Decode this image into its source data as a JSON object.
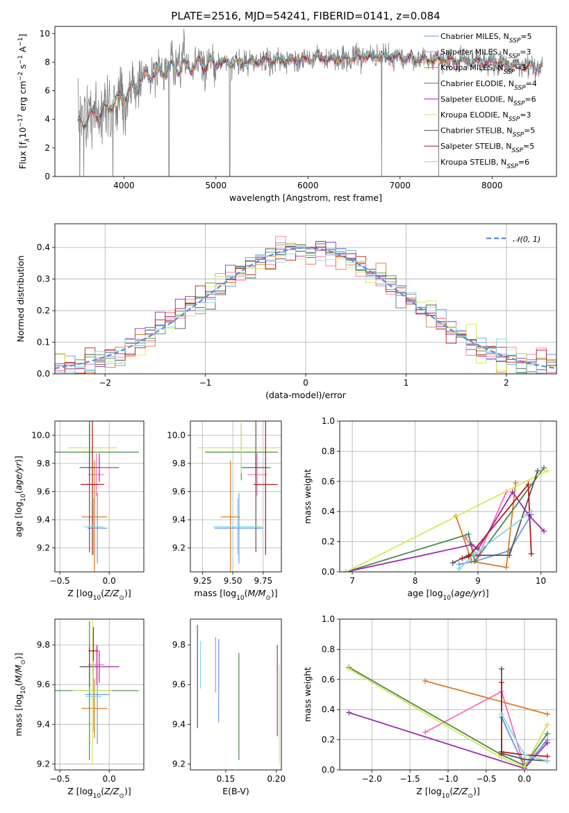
{
  "title": "PLATE=2516, MJD=54241, FIBERID=0141, z=0.084",
  "colors": {
    "Chabrier MILES": "#6495ed",
    "Salpeter MILES": "#ff69b4",
    "Kroupa MILES": "#e07a20",
    "Chabrier ELODIE": "#4a8a4a",
    "Salpeter ELODIE": "#9a2ab0",
    "Kroupa ELODIE": "#d4e85a",
    "Chabrier STELIB": "#555555",
    "Salpeter STELIB": "#b01818",
    "Kroupa STELIB": "#80d8e0",
    "data": "#7f7f7f",
    "normal": "#5b8bd6"
  },
  "chart_data": [
    {
      "id": "spectrum",
      "type": "line",
      "title": "PLATE=2516, MJD=54241, FIBERID=0141, z=0.084",
      "xlabel": "wavelength [Angstrom, rest frame]",
      "ylabel_parts": [
        "Flux [f",
        "λ",
        "10",
        "−17",
        " erg cm",
        "−2",
        " s",
        "−1",
        " A",
        "−1",
        "]"
      ],
      "xlim": [
        3250,
        8700
      ],
      "ylim": [
        0,
        10.5
      ],
      "xticks": [
        4000,
        5000,
        6000,
        7000,
        8000
      ],
      "yticks": [
        0,
        2,
        4,
        6,
        8,
        10
      ],
      "grid": false,
      "legend": "right",
      "legend_entries": [
        {
          "model": "Chabrier MILES",
          "label": "Chabrier MILES, N",
          "n": "=5"
        },
        {
          "model": "Salpeter MILES",
          "label": "Salpeter MILES, N",
          "n": "=3"
        },
        {
          "model": "Kroupa MILES",
          "label": "Kroupa MILES, N",
          "n": "=3"
        },
        {
          "model": "Chabrier ELODIE",
          "label": "Chabrier ELODIE, N",
          "n": "=4"
        },
        {
          "model": "Salpeter ELODIE",
          "label": "Salpeter ELODIE, N",
          "n": "=6"
        },
        {
          "model": "Kroupa ELODIE",
          "label": "Kroupa ELODIE, N",
          "n": "=3"
        },
        {
          "model": "Chabrier STELIB",
          "label": "Chabrier STELIB, N",
          "n": "=5"
        },
        {
          "model": "Salpeter STELIB",
          "label": "Salpeter STELIB, N",
          "n": "=5"
        },
        {
          "model": "Kroupa STELIB",
          "label": "Kroupa STELIB, N",
          "n": "=6"
        }
      ],
      "legend_sub": "SSP",
      "continuum": {
        "x": [
          3500,
          3700,
          3900,
          4100,
          4300,
          4500,
          4700,
          4900,
          5100,
          5300,
          5500,
          5700,
          5900,
          6100,
          6300,
          6500,
          6700,
          6900,
          7100,
          7300,
          7500,
          7700,
          7900,
          8100,
          8300,
          8500
        ],
        "y": [
          3.7,
          4.4,
          5.1,
          6.2,
          7.2,
          7.6,
          7.8,
          7.9,
          7.9,
          8.0,
          8.1,
          8.1,
          8.2,
          8.3,
          8.2,
          8.3,
          8.4,
          8.4,
          8.3,
          8.2,
          8.2,
          8.1,
          8.0,
          7.9,
          7.8,
          7.7
        ]
      },
      "drops": [
        3520,
        3880,
        4490,
        5150,
        6800,
        7420
      ]
    },
    {
      "id": "residuals",
      "type": "histogram",
      "xlabel": "(data-model)/error",
      "ylabel": "Normed distribution",
      "xlim": [
        -2.5,
        2.5
      ],
      "ylim": [
        0,
        0.475
      ],
      "xticks": [
        -2,
        -1,
        0,
        1,
        2
      ],
      "yticks": [
        0.0,
        0.1,
        0.2,
        0.3,
        0.4
      ],
      "grid": true,
      "legend": "top-right",
      "reference_label": "𝒩(0, 1)",
      "bin_width": 0.1
    },
    {
      "id": "age-vs-Z",
      "type": "errorbar",
      "xlabel": "Z [log10(Z/Z⊙)]",
      "ylabel": "age  [log10(age/yr)]",
      "xlim": [
        -0.55,
        0.35
      ],
      "ylim": [
        9.03,
        10.1
      ],
      "xticks": [
        -0.5,
        0.0
      ],
      "yticks": [
        9.2,
        9.4,
        9.6,
        9.8,
        10.0
      ],
      "grid": true,
      "points": [
        {
          "model": "Chabrier MILES",
          "x": -0.12,
          "y": 9.34,
          "xerr": 0.1,
          "yerr": 0.25
        },
        {
          "model": "Salpeter MILES",
          "x": -0.13,
          "y": 9.72,
          "xerr": 0.08,
          "yerr": 0.15
        },
        {
          "model": "Kroupa MILES",
          "x": -0.15,
          "y": 9.42,
          "xerr": 0.13,
          "yerr": 0.4
        },
        {
          "model": "Chabrier ELODIE",
          "x": -0.2,
          "y": 9.88,
          "xerr": 0.5,
          "yerr": 0.2
        },
        {
          "model": "Salpeter ELODIE",
          "x": -0.1,
          "y": 9.77,
          "xerr": 0.2,
          "yerr": 0.1
        },
        {
          "model": "Kroupa ELODIE",
          "x": -0.17,
          "y": 9.91,
          "xerr": 0.25,
          "yerr": 0.18
        },
        {
          "model": "Chabrier STELIB",
          "x": -0.2,
          "y": 9.77,
          "xerr": 0.1,
          "yerr": 0.6
        },
        {
          "model": "Salpeter STELIB",
          "x": -0.17,
          "y": 9.65,
          "xerr": 0.12,
          "yerr": 0.5
        },
        {
          "model": "Kroupa STELIB",
          "x": -0.16,
          "y": 9.35,
          "xerr": 0.1,
          "yerr": 0.2
        }
      ]
    },
    {
      "id": "age-vs-mass",
      "type": "errorbar",
      "xlabel": "mass [log10(M/M⊙)]",
      "ylabel": "",
      "xlim": [
        9.15,
        9.9
      ],
      "ylim": [
        9.03,
        10.1
      ],
      "xticks": [
        9.25,
        9.5,
        9.75
      ],
      "yticks": [
        9.2,
        9.4,
        9.6,
        9.8,
        10.0
      ],
      "grid": true,
      "points": [
        {
          "model": "Chabrier MILES",
          "x": 9.55,
          "y": 9.34,
          "xerr": 0.2,
          "yerr": 0.25
        },
        {
          "model": "Salpeter MILES",
          "x": 9.7,
          "y": 9.72,
          "xerr": 0.08,
          "yerr": 0.15
        },
        {
          "model": "Kroupa MILES",
          "x": 9.48,
          "y": 9.42,
          "xerr": 0.08,
          "yerr": 0.4
        },
        {
          "model": "Chabrier ELODIE",
          "x": 9.57,
          "y": 9.88,
          "xerr": 0.3,
          "yerr": 0.2
        },
        {
          "model": "Salpeter ELODIE",
          "x": 9.69,
          "y": 9.77,
          "xerr": 0.1,
          "yerr": 0.1
        },
        {
          "model": "Kroupa ELODIE",
          "x": 9.57,
          "y": 9.91,
          "xerr": 0.36,
          "yerr": 0.18
        },
        {
          "model": "Chabrier STELIB",
          "x": 9.69,
          "y": 9.77,
          "xerr": 0.12,
          "yerr": 0.6
        },
        {
          "model": "Salpeter STELIB",
          "x": 9.77,
          "y": 9.65,
          "xerr": 0.1,
          "yerr": 0.5
        },
        {
          "model": "Kroupa STELIB",
          "x": 9.54,
          "y": 9.35,
          "xerr": 0.2,
          "yerr": 0.2
        }
      ]
    },
    {
      "id": "weight-vs-age",
      "type": "line",
      "xlabel": "age  [log10(age/yr)]",
      "ylabel": "mass weight",
      "xlim": [
        6.8,
        10.25
      ],
      "ylim": [
        0,
        1.0
      ],
      "xticks": [
        7,
        8,
        9,
        10
      ],
      "yticks": [
        0.0,
        0.2,
        0.4,
        0.6,
        0.8,
        1.0
      ],
      "grid": true,
      "series": [
        {
          "model": "Chabrier MILES",
          "x": [
            8.7,
            8.95,
            9.5,
            9.85
          ],
          "y": [
            0.05,
            0.07,
            0.14,
            0.38
          ]
        },
        {
          "model": "Salpeter MILES",
          "x": [
            8.8,
            9.0,
            9.45
          ],
          "y": [
            0.23,
            0.1,
            0.53
          ]
        },
        {
          "model": "Kroupa MILES",
          "x": [
            8.65,
            8.9,
            9.45,
            9.6
          ],
          "y": [
            0.37,
            0.07,
            0.03,
            0.59
          ]
        },
        {
          "model": "Chabrier ELODIE",
          "x": [
            6.9,
            8.85,
            8.95,
            10.05
          ],
          "y": [
            0.0,
            0.25,
            0.07,
            0.69
          ]
        },
        {
          "model": "Salpeter ELODIE",
          "x": [
            6.9,
            8.9,
            9.0,
            9.55,
            9.8,
            10.05
          ],
          "y": [
            0.0,
            0.18,
            0.15,
            0.53,
            0.38,
            0.27
          ]
        },
        {
          "model": "Kroupa ELODIE",
          "x": [
            6.9,
            10.1
          ],
          "y": [
            0.0,
            0.67
          ]
        },
        {
          "model": "Chabrier STELIB",
          "x": [
            8.6,
            8.85,
            9.5,
            9.95
          ],
          "y": [
            0.06,
            0.11,
            0.11,
            0.67
          ]
        },
        {
          "model": "Salpeter STELIB",
          "x": [
            8.75,
            8.85,
            9.8,
            9.85
          ],
          "y": [
            0.09,
            0.1,
            0.58,
            0.12
          ]
        },
        {
          "model": "Kroupa STELIB",
          "x": [
            8.7,
            8.95,
            9.85
          ],
          "y": [
            0.02,
            0.12,
            0.4
          ]
        }
      ]
    },
    {
      "id": "mass-vs-Z",
      "type": "errorbar",
      "xlabel": "Z [log10(Z/Z⊙)]",
      "ylabel": "mass [log10(M/M⊙)]",
      "xlim": [
        -0.55,
        0.35
      ],
      "ylim": [
        9.17,
        9.93
      ],
      "xticks": [
        -0.5,
        0.0
      ],
      "yticks": [
        9.2,
        9.4,
        9.6,
        9.8
      ],
      "grid": true,
      "points": [
        {
          "model": "Chabrier MILES",
          "x": -0.12,
          "y": 9.55,
          "xerr": 0.12,
          "yerr": 0.25
        },
        {
          "model": "Salpeter MILES",
          "x": -0.13,
          "y": 9.7,
          "xerr": 0.08,
          "yerr": 0.1
        },
        {
          "model": "Kroupa MILES",
          "x": -0.15,
          "y": 9.48,
          "xerr": 0.13,
          "yerr": 0.15
        },
        {
          "model": "Chabrier ELODIE",
          "x": -0.2,
          "y": 9.57,
          "xerr": 0.5,
          "yerr": 0.35
        },
        {
          "model": "Salpeter ELODIE",
          "x": -0.1,
          "y": 9.69,
          "xerr": 0.2,
          "yerr": 0.08
        },
        {
          "model": "Kroupa ELODIE",
          "x": -0.17,
          "y": 9.57,
          "xerr": 0.2,
          "yerr": 0.37
        },
        {
          "model": "Chabrier STELIB",
          "x": -0.2,
          "y": 9.69,
          "xerr": 0.08,
          "yerr": 0.1
        },
        {
          "model": "Salpeter STELIB",
          "x": -0.16,
          "y": 9.77,
          "xerr": 0.05,
          "yerr": 0.12
        },
        {
          "model": "Kroupa STELIB",
          "x": -0.16,
          "y": 9.54,
          "xerr": 0.08,
          "yerr": 0.18
        }
      ]
    },
    {
      "id": "mass-vs-EBV",
      "type": "errorbar",
      "xlabel": "E(B-V)",
      "ylabel": "",
      "xlim": [
        0.115,
        0.205
      ],
      "ylim": [
        9.17,
        9.93
      ],
      "xticks": [
        0.1,
        0.15,
        0.2
      ],
      "yticks": [
        9.2,
        9.4,
        9.6,
        9.8
      ],
      "grid": false,
      "points": [
        {
          "model": "Chabrier MILES",
          "x": 0.143,
          "y": 9.62,
          "yerr": 0.21
        },
        {
          "model": "Salpeter MILES",
          "x": 0.14,
          "y": 9.7,
          "yerr": 0.14
        },
        {
          "model": "Chabrier ELODIE",
          "x": 0.163,
          "y": 9.49,
          "yerr": 0.27
        },
        {
          "model": "Salpeter ELODIE",
          "x": 0.201,
          "y": 9.57,
          "yerr": 0.23
        },
        {
          "model": "Kroupa ELODIE",
          "x": 0.203,
          "y": 9.45,
          "yerr": 0.25
        },
        {
          "model": "Chabrier STELIB",
          "x": 0.122,
          "y": 9.64,
          "yerr": 0.26
        },
        {
          "model": "Kroupa STELIB",
          "x": 0.125,
          "y": 9.7,
          "yerr": 0.12
        }
      ]
    },
    {
      "id": "weight-vs-Z",
      "type": "line",
      "xlabel": "Z [log10(Z/Z⊙)]",
      "ylabel": "mass weight",
      "xlim": [
        -2.42,
        0.42
      ],
      "ylim": [
        0,
        1.0
      ],
      "xticks": [
        -2.0,
        -1.5,
        -1.0,
        -0.5,
        0.0
      ],
      "yticks": [
        0.0,
        0.2,
        0.4,
        0.6,
        0.8,
        1.0
      ],
      "grid": true,
      "series": [
        {
          "model": "Chabrier MILES",
          "x": [
            -0.3,
            0.0,
            0.3
          ],
          "y": [
            0.35,
            0.02,
            0.2
          ]
        },
        {
          "model": "Salpeter MILES",
          "x": [
            -1.3,
            -0.3,
            0.0,
            0.3
          ],
          "y": [
            0.25,
            0.52,
            0.02,
            0.3
          ]
        },
        {
          "model": "Kroupa MILES",
          "x": [
            -1.3,
            0.3
          ],
          "y": [
            0.59,
            0.37
          ]
        },
        {
          "model": "Chabrier ELODIE",
          "x": [
            -2.3,
            -0.3,
            0.0,
            0.3
          ],
          "y": [
            0.68,
            0.1,
            0.03,
            0.24
          ]
        },
        {
          "model": "Salpeter ELODIE",
          "x": [
            -2.3,
            0.0,
            0.3
          ],
          "y": [
            0.38,
            0.01,
            0.18
          ]
        },
        {
          "model": "Kroupa ELODIE",
          "x": [
            -2.3,
            -0.3,
            0.0,
            0.3
          ],
          "y": [
            0.67,
            0.08,
            0.02,
            0.3
          ]
        },
        {
          "model": "Chabrier STELIB",
          "x": [
            -0.3,
            -0.3,
            0.0,
            0.3
          ],
          "y": [
            0.67,
            0.11,
            0.07,
            0.06
          ]
        },
        {
          "model": "Salpeter STELIB",
          "x": [
            -0.3,
            -0.3,
            0.0,
            0.3
          ],
          "y": [
            0.58,
            0.12,
            0.1,
            0.09
          ]
        },
        {
          "model": "Kroupa STELIB",
          "x": [
            -0.3,
            0.0,
            0.3
          ],
          "y": [
            0.37,
            0.1,
            0.06
          ]
        }
      ]
    }
  ]
}
